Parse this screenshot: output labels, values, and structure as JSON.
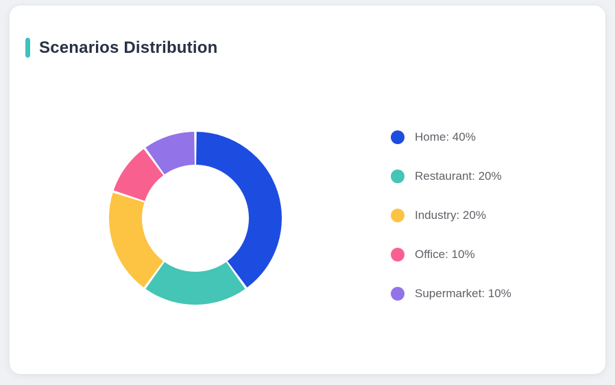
{
  "card": {
    "title": "Scenarios Distribution"
  },
  "theme": {
    "page_bg": "#eff1f4",
    "card_bg": "#ffffff",
    "accent_color": "#3dc2bc",
    "title_color": "#273143",
    "legend_text_color": "#5e6166"
  },
  "chart_data": {
    "type": "pie",
    "subtype": "donut",
    "title": "Scenarios Distribution",
    "categories": [
      "Home",
      "Restaurant",
      "Industry",
      "Office",
      "Supermarket"
    ],
    "values": [
      40,
      20,
      20,
      10,
      10
    ],
    "unit": "%",
    "colors": [
      "#1d4ce0",
      "#44c5b6",
      "#fdc343",
      "#f8618f",
      "#9273e8"
    ],
    "start_angle_deg": 0,
    "direction": "clockwise",
    "inner_radius_ratio": 0.62,
    "legend_position": "right",
    "legend": [
      {
        "label": "Home: 40%"
      },
      {
        "label": "Restaurant: 20%"
      },
      {
        "label": "Industry: 20%"
      },
      {
        "label": "Office: 10%"
      },
      {
        "label": "Supermarket: 10%"
      }
    ]
  }
}
